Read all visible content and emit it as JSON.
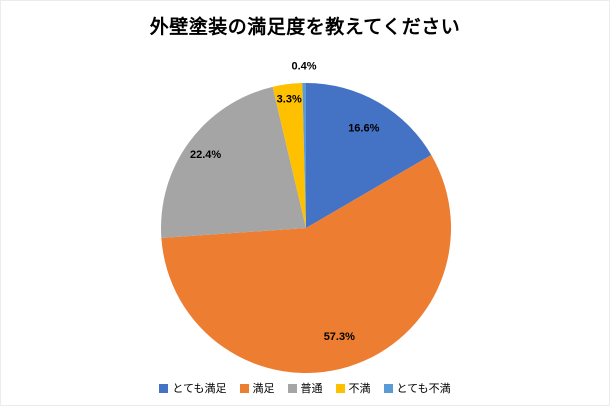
{
  "chart_data": {
    "type": "pie",
    "title": "外壁塗装の満足度を教えてください",
    "categories": [
      "とても満足",
      "満足",
      "普通",
      "不満",
      "とても不満"
    ],
    "values": [
      16.6,
      57.3,
      22.4,
      3.3,
      0.4
    ],
    "labels": [
      "16.6%",
      "57.3%",
      "22.4%",
      "3.3%",
      "0.4%"
    ],
    "colors": [
      "#4472C4",
      "#ED7D31",
      "#A5A5A5",
      "#FFC000",
      "#5B9BD5"
    ],
    "start_angle": 0,
    "direction": "clockwise",
    "legend_position": "bottom",
    "label_radius_factors": [
      0.8,
      0.78,
      0.86,
      0.9,
      1.12
    ]
  }
}
